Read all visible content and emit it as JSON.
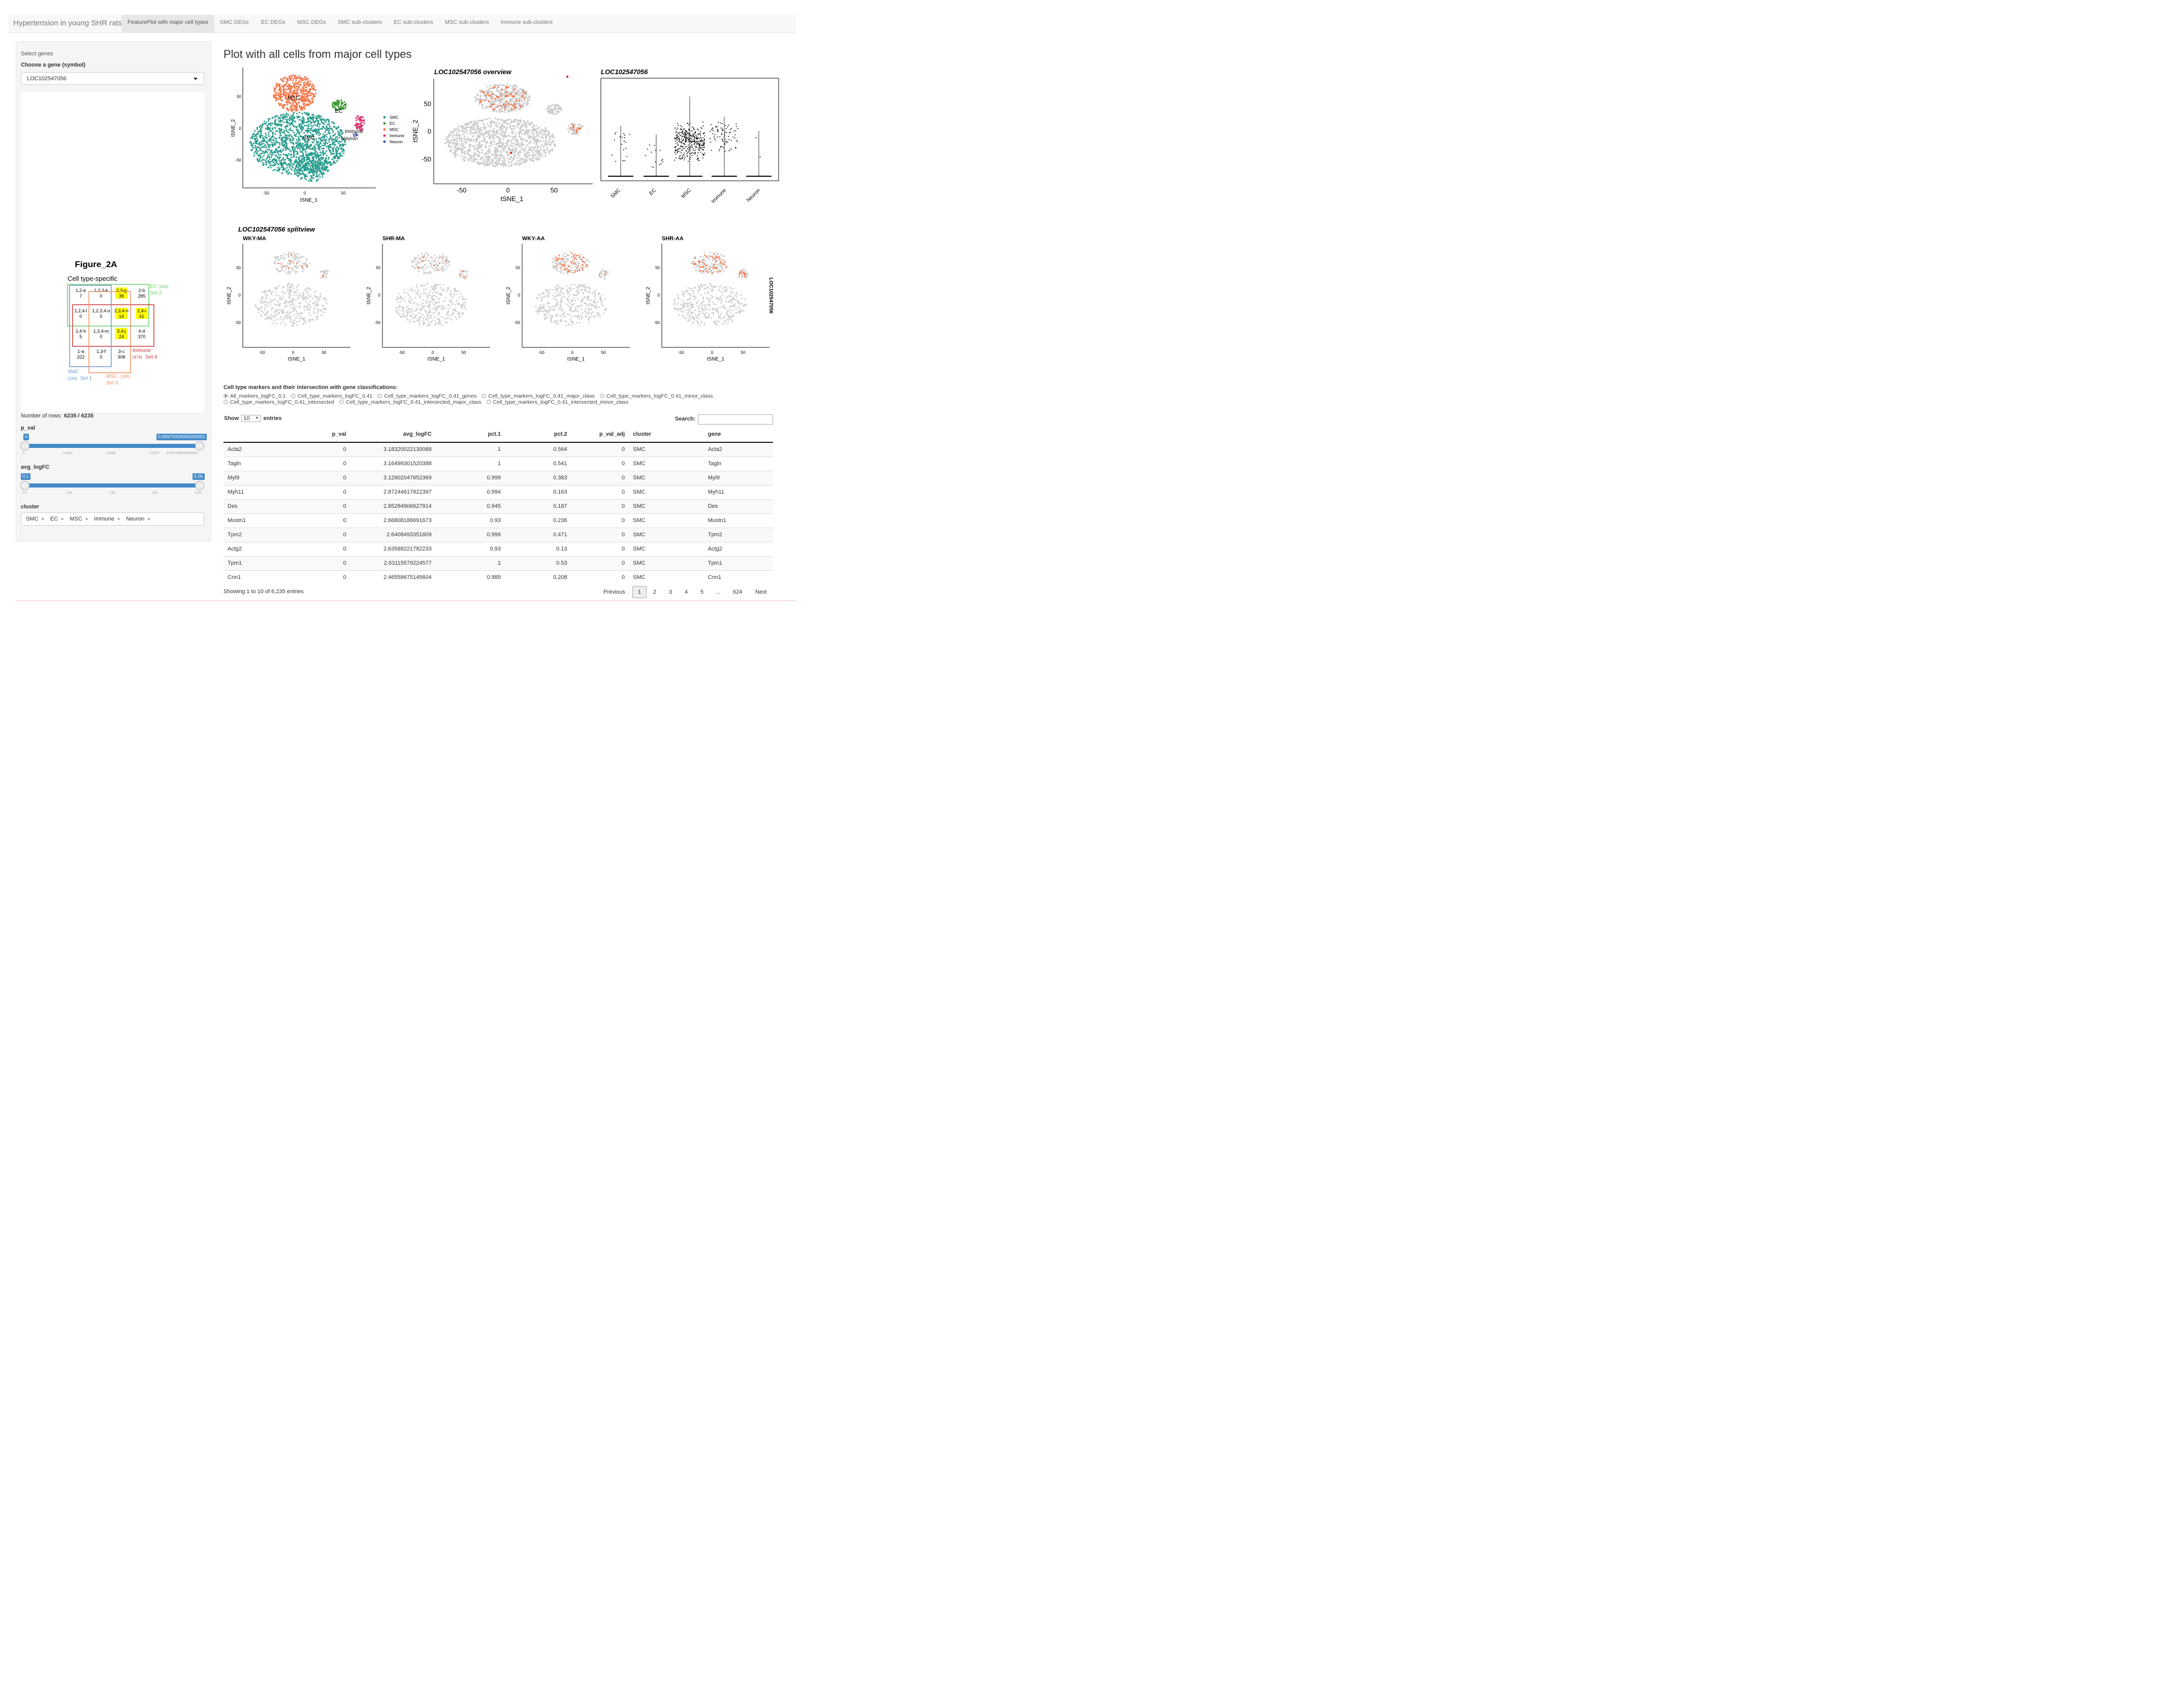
{
  "nav": {
    "brand": "Hypertension in young SHR rats",
    "tabs": [
      "FeaturePlot with major cell types",
      "SMC DEGs",
      "EC DEGs",
      "MSC DEGs",
      "SMC sub-clusters",
      "EC sub-clusters",
      "MSC sub-clusters",
      "Immune sub-clusters"
    ],
    "active_tab": 0
  },
  "sidebar": {
    "select_genes": "Select genes",
    "choose_gene": "Choose a gene (symbol)",
    "gene": "LOC102547056",
    "rows_label": "Number of rows:",
    "rows_value": "6235 / 6235",
    "p_val": {
      "label": "p_val",
      "min": "0",
      "max": "0.00970000000000001",
      "ticks": [
        "0",
        "0.0024",
        "0.0049",
        "0.0073",
        "0.00970000000000001"
      ]
    },
    "avg_logFC": {
      "label": "avg_logFC",
      "min": "0.1",
      "max": "5.05",
      "ticks": [
        "0.1",
        "1.34",
        "2.58",
        "3.81",
        "5.05"
      ]
    },
    "cluster": {
      "label": "cluster",
      "values": [
        "SMC",
        "EC",
        "MSC",
        "Immune",
        "Neuron"
      ]
    }
  },
  "venn": {
    "title": "Figure_2A",
    "subtitle": "Cell type-specific",
    "cells": [
      [
        "1,2-e",
        "7"
      ],
      [
        "1,2,3-k",
        "0"
      ],
      [
        "2,3-g",
        "39"
      ],
      [
        "2-b",
        "285"
      ],
      [
        "1,2,4-l",
        "0"
      ],
      [
        "1,2,3,4-o",
        "0"
      ],
      [
        "2,3,4-n",
        "14"
      ],
      [
        "2,4-i",
        "61"
      ],
      [
        "1,4-h",
        "5"
      ],
      [
        "1,3,4-m",
        "0"
      ],
      [
        "3,4-j",
        "24"
      ],
      [
        "4-d",
        "370"
      ],
      [
        "1-a",
        "322"
      ],
      [
        "1,3-f",
        "0"
      ],
      [
        "3-c",
        "308"
      ],
      [
        "",
        ""
      ]
    ],
    "highlight": [
      2,
      6,
      7,
      10
    ],
    "sets": {
      "ec": [
        "EC",
        "(406)",
        "Set 2"
      ],
      "immune": [
        "Immune",
        "(474)",
        "Set 4"
      ],
      "smc": [
        "SMC",
        "(334)",
        "Set 1"
      ],
      "msc": [
        "MSC",
        "(385)",
        "Set 3"
      ]
    },
    "colors": {
      "ec": "#66cc66",
      "immune": "#cc3333",
      "smc": "#6699cc",
      "msc": "#f09060"
    }
  },
  "main": {
    "title": "Plot with all cells from major cell types",
    "tsne": {
      "xlabel": "tSNE_1",
      "ylabel": "tSNE_2",
      "xticks": [
        "-50",
        "0",
        "50"
      ],
      "yticks": [
        "50",
        "0",
        "-50"
      ],
      "labels": [
        "MSC",
        "EC",
        "SMC",
        "Immune",
        "Neuron"
      ],
      "legend": [
        "SMC",
        "EC",
        "MSC",
        "Immune",
        "Neuron"
      ],
      "colors": {
        "SMC": "#2a9d8f",
        "EC": "#3a9a30",
        "MSC": "#f4774a",
        "Immune": "#d6336c",
        "Neuron": "#4050b0"
      }
    },
    "overview_title": "LOC102547056 overview",
    "violin_title": "LOC102547056",
    "violin_cats": [
      "SMC",
      "EC",
      "MSC",
      "Immune",
      "Neuron"
    ],
    "split_title": "LOC102547056 splitview",
    "split_panels": [
      "WKY-MA",
      "SHR-MA",
      "WKY-AA",
      "SHR-AA"
    ],
    "split_side_label": "LOC102547056"
  },
  "table_section": {
    "heading": "Cell type markers and their intersection with gene classifications:",
    "radios": [
      "All_markers_logFC_0.1",
      "Cell_type_markers_logFC_0.41",
      "Cell_type_markers_logFC_0.41_genes",
      "Cell_type_markers_logFC_0.41_major_class",
      "Cell_type_markers_logFC_0.41_minor_class",
      "Cell_type_markers_logFC_0.41_intersected",
      "Cell_type_markers_logFC_0.41_intersected_major_class",
      "Cell_type_markers_logFC_0.41_intersected_minor_class"
    ],
    "selected": 0,
    "show": "Show",
    "show_value": "10",
    "entries": "entries",
    "search": "Search:",
    "columns": [
      "",
      "p_val",
      "avg_logFC",
      "pct.1",
      "pct.2",
      "p_val_adj",
      "cluster",
      "gene"
    ],
    "rows": [
      [
        "Acta2",
        "0",
        "3.18320022130088",
        "1",
        "0.564",
        "0",
        "SMC",
        "Acta2"
      ],
      [
        "Tagln",
        "0",
        "3.16499301520388",
        "1",
        "0.541",
        "0",
        "SMC",
        "Tagln"
      ],
      [
        "Myl9",
        "0",
        "3.12902047652369",
        "0.999",
        "0.383",
        "0",
        "SMC",
        "Myl9"
      ],
      [
        "Myh11",
        "0",
        "2.87244617922397",
        "0.994",
        "0.163",
        "0",
        "SMC",
        "Myh11"
      ],
      [
        "Des",
        "0",
        "2.85284906627914",
        "0.945",
        "0.187",
        "0",
        "SMC",
        "Des"
      ],
      [
        "Mustn1",
        "0",
        "2.66808186691673",
        "0.93",
        "0.236",
        "0",
        "SMC",
        "Mustn1"
      ],
      [
        "Tpm2",
        "0",
        "2.6408493351609",
        "0.999",
        "0.471",
        "0",
        "SMC",
        "Tpm2"
      ],
      [
        "Actg2",
        "0",
        "2.63588221782233",
        "0.93",
        "0.13",
        "0",
        "SMC",
        "Actg2"
      ],
      [
        "Tpm1",
        "0",
        "2.63115579224577",
        "1",
        "0.53",
        "0",
        "SMC",
        "Tpm1"
      ],
      [
        "Cnn1",
        "0",
        "2.46558675145604",
        "0.989",
        "0.208",
        "0",
        "SMC",
        "Cnn1"
      ]
    ],
    "info": "Showing 1 to 10 of 6,235 entries",
    "pagination": [
      "Previous",
      "1",
      "2",
      "3",
      "4",
      "5",
      "…",
      "624",
      "Next"
    ]
  }
}
